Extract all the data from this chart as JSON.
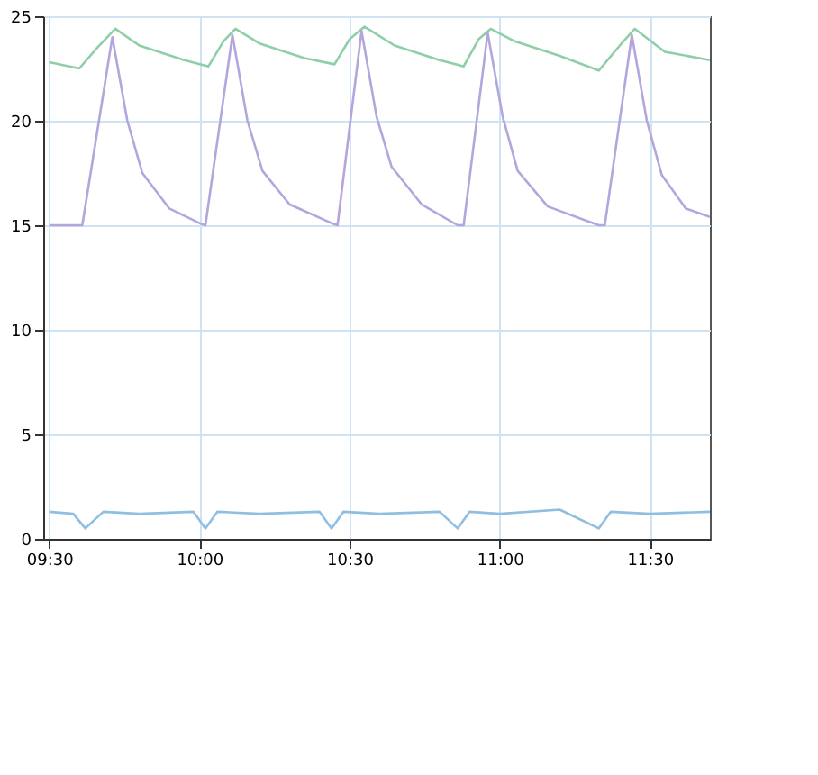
{
  "chart_data": {
    "type": "line",
    "xlim": [
      9.48,
      11.7
    ],
    "ylim": [
      0,
      25
    ],
    "yticks": [
      0,
      5,
      10,
      15,
      20,
      25
    ],
    "xticks": [
      {
        "value": 9.5,
        "label": "09:30"
      },
      {
        "value": 10.0,
        "label": "10:00"
      },
      {
        "value": 10.5,
        "label": "10:30"
      },
      {
        "value": 11.0,
        "label": "11:00"
      },
      {
        "value": 11.5,
        "label": "11:30"
      }
    ],
    "grid": true,
    "legend": false,
    "marker": "none",
    "line_style": "solid",
    "series": [
      {
        "color": "#8fcfa8",
        "x": [
          9.5,
          9.6,
          9.66,
          9.72,
          9.8,
          9.95,
          10.03,
          10.08,
          10.12,
          10.2,
          10.35,
          10.45,
          10.5,
          10.55,
          10.65,
          10.8,
          10.88,
          10.93,
          10.97,
          11.05,
          11.2,
          11.33,
          11.4,
          11.45,
          11.55,
          11.7
        ],
        "values": [
          22.8,
          22.5,
          23.5,
          24.4,
          23.6,
          22.9,
          22.6,
          23.8,
          24.4,
          23.7,
          23.0,
          22.7,
          23.9,
          24.5,
          23.6,
          22.9,
          22.6,
          23.9,
          24.4,
          23.8,
          23.1,
          22.4,
          23.6,
          24.4,
          23.3,
          22.9
        ]
      },
      {
        "color": "#b3a6dc",
        "x": [
          9.5,
          9.61,
          9.71,
          9.76,
          9.81,
          9.9,
          10.0,
          10.02,
          10.11,
          10.16,
          10.21,
          10.3,
          10.44,
          10.46,
          10.54,
          10.59,
          10.64,
          10.74,
          10.86,
          10.88,
          10.96,
          11.01,
          11.06,
          11.16,
          11.33,
          11.35,
          11.44,
          11.49,
          11.54,
          11.62,
          11.7
        ],
        "values": [
          15.0,
          15.0,
          24.0,
          20.0,
          17.5,
          15.8,
          15.1,
          15.0,
          24.1,
          20.0,
          17.6,
          16.0,
          15.1,
          15.0,
          24.3,
          20.2,
          17.8,
          16.0,
          15.0,
          15.0,
          24.2,
          20.2,
          17.6,
          15.9,
          15.0,
          15.0,
          24.1,
          20.0,
          17.4,
          15.8,
          15.4
        ]
      },
      {
        "color": "#8fbfe0",
        "x": [
          9.5,
          9.58,
          9.62,
          9.68,
          9.8,
          9.98,
          10.02,
          10.06,
          10.2,
          10.4,
          10.44,
          10.48,
          10.6,
          10.8,
          10.86,
          10.9,
          11.0,
          11.2,
          11.33,
          11.37,
          11.5,
          11.7
        ],
        "values": [
          1.3,
          1.2,
          0.5,
          1.3,
          1.2,
          1.3,
          0.5,
          1.3,
          1.2,
          1.3,
          0.5,
          1.3,
          1.2,
          1.3,
          0.5,
          1.3,
          1.2,
          1.4,
          0.5,
          1.3,
          1.2,
          1.3
        ]
      }
    ]
  }
}
